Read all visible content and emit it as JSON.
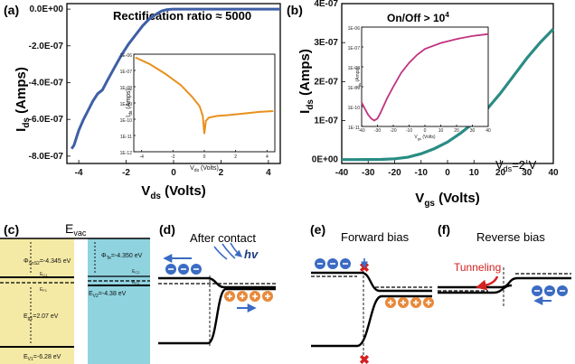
{
  "panels": {
    "a": "(a)",
    "b": "(b)",
    "c": "(c)",
    "d": "(d)",
    "e": "(e)",
    "f": "(f)"
  },
  "panel_a": {
    "annotation": "Rectification ratio ≈ 5000",
    "ylabel_main": "I",
    "ylabel_sub": "ds",
    "ylabel_unit": " (Amps)",
    "xlabel_main": "V",
    "xlabel_sub": "ds",
    "xlabel_unit": " (Volts)",
    "yticks": [
      "0.0E+00",
      "-2.0E-07",
      "-4.0E-07",
      "-6.0E-07",
      "-8.0E-07"
    ],
    "xticks": [
      "-4",
      "-2",
      "0",
      "2",
      "4"
    ],
    "inset": {
      "ylabel": "I",
      "ylabel_sub": "ds",
      "ylabel_unit": " (Amps)",
      "xlabel": "V",
      "xlabel_sub": "ds",
      "xlabel_unit": " (Volts)",
      "yticks": [
        "1E-06",
        "1E-07",
        "1E-08",
        "1E-09",
        "1E-10",
        "1E-11",
        "1E-12"
      ],
      "xticks": [
        "-4",
        "-2",
        "0",
        "2",
        "4"
      ]
    }
  },
  "panel_b": {
    "annotation": "On/Off > 10",
    "annotation_exp": "4",
    "ylabel_main": "I",
    "ylabel_sub": "ds",
    "ylabel_unit": " (Amps)",
    "xlabel_main": "V",
    "xlabel_sub": "gs",
    "xlabel_unit": " (Volts)",
    "yticks": [
      "4E-07",
      "3E-07",
      "2E-07",
      "1E-07",
      "0E+00"
    ],
    "xticks": [
      "-40",
      "-30",
      "-20",
      "-10",
      "0",
      "10",
      "20",
      "30",
      "40"
    ],
    "vds_label": "V",
    "vds_sub": "ds",
    "vds_value": "=2 V",
    "inset": {
      "ylabel": "I",
      "ylabel_sub": "ds",
      "ylabel_unit": " (Amps)",
      "xlabel": "V",
      "xlabel_sub": "gs",
      "xlabel_unit": " (Volts)",
      "yticks": [
        "1E-06",
        "1E-07",
        "1E-08",
        "1E-09",
        "1E-10",
        "1E-11"
      ],
      "xticks": [
        "-40",
        "-30",
        "-20",
        "-10",
        "0",
        "10",
        "20",
        "30",
        "40"
      ]
    }
  },
  "panel_c": {
    "evac": "E",
    "evac_sub": "vac",
    "phi1": "Φ",
    "phi1_sub": "SnS2",
    "phi1_val": "=-4.345 eV",
    "phi2": "Φ",
    "phi2_sub": "Te",
    "phi2_val": "=-4.350 eV",
    "ec1": "E",
    "ec1_sub": "C1",
    "ef1": "E",
    "ef1_sub": "F1",
    "ec2": "E",
    "ec2_sub": "C2",
    "ef2": "E",
    "ef2_sub": "F2",
    "ev2": "E",
    "ev2_sub": "V2",
    "ev2_val": "=-4.38 eV",
    "eg": "E",
    "eg_sub": "g1",
    "eg_val": "=2.07 eV",
    "ev1": "E",
    "ev1_sub": "V1",
    "ev1_val": "=-6.28 eV"
  },
  "panel_d": {
    "title": "After contact",
    "hv": "hv"
  },
  "panel_e": {
    "title": "Forward bias"
  },
  "panel_f": {
    "title": "Reverse bias",
    "tunneling": "Tunneling"
  },
  "colors": {
    "curve_a": "#3e5fa5",
    "inset_a": "#e8901c",
    "curve_b": "#2a8c84",
    "inset_b": "#c0337f",
    "sns2": "#f5eaa5",
    "te": "#8fd3df",
    "electron": "#3b6bc4",
    "hole": "#e8893a",
    "red": "#d42020"
  },
  "chart_data": [
    {
      "type": "line",
      "panel": "a",
      "xlabel": "Vds (Volts)",
      "ylabel": "Ids (Amps)",
      "xlim": [
        -4.5,
        4.5
      ],
      "ylim": [
        -8.4e-07,
        3e-08
      ],
      "series": [
        {
          "x": [
            -4.3,
            -4.2,
            -4.1,
            -4.0,
            -3.8,
            -3.6,
            -3.4,
            -3.2,
            -3.0,
            -2.8,
            -2.5,
            -2.2,
            -1.9,
            -1.6,
            -1.3,
            -1.0,
            -0.7,
            -0.5,
            -0.3,
            -0.1,
            0.0,
            1.0,
            2.0,
            3.0,
            4.0,
            4.5
          ],
          "y": [
            -7.6e-07,
            -7.4e-07,
            -7e-07,
            -6.6e-07,
            -6e-07,
            -5.5e-07,
            -5e-07,
            -4.6e-07,
            -4.4e-07,
            -3.9e-07,
            -3.2e-07,
            -2.5e-07,
            -1.9e-07,
            -1.4e-07,
            -9e-08,
            -5e-08,
            -2.5e-08,
            -1e-08,
            -3e-09,
            -5e-10,
            0.0,
            0.0,
            0.0,
            0.0,
            0.0,
            0.0
          ]
        }
      ]
    },
    {
      "type": "line",
      "panel": "a-inset",
      "xlabel": "Vds (Volts)",
      "ylabel": "Ids (Amps)",
      "xlim": [
        -4.5,
        4.5
      ],
      "ylim": [
        -12,
        -6
      ],
      "yscale": "log",
      "series": [
        {
          "x": [
            -4.4,
            -3.5,
            -2.5,
            -1.5,
            -0.8,
            -0.3,
            -0.1,
            0.0,
            0.1,
            0.3,
            0.8,
            1.5,
            2.5,
            3.5,
            4.4
          ],
          "y": [
            -6.2,
            -6.6,
            -7.2,
            -7.9,
            -8.6,
            -9.2,
            -9.8,
            -10.9,
            -10.1,
            -9.9,
            -9.8,
            -9.75,
            -9.65,
            -9.55,
            -9.5
          ]
        }
      ]
    },
    {
      "type": "line",
      "panel": "b",
      "xlabel": "Vgs (Volts)",
      "ylabel": "Ids (Amps)",
      "xlim": [
        -40,
        40
      ],
      "ylim": [
        -1e-08,
        4e-07
      ],
      "series": [
        {
          "x": [
            -40,
            -35,
            -30,
            -25,
            -20,
            -15,
            -10,
            -5,
            0,
            5,
            10,
            15,
            20,
            25,
            30,
            35,
            40
          ],
          "y": [
            0.0,
            0.0,
            1e-10,
            5e-10,
            2e-09,
            6e-09,
            1.5e-08,
            2.8e-08,
            4.5e-08,
            6.8e-08,
            9.5e-08,
            1.3e-07,
            1.7e-07,
            2.15e-07,
            2.6e-07,
            3e-07,
            3.35e-07
          ]
        }
      ]
    },
    {
      "type": "line",
      "panel": "b-inset",
      "xlabel": "Vgs (Volts)",
      "ylabel": "Ids (Amps)",
      "xlim": [
        -40,
        40
      ],
      "ylim": [
        -11,
        -6
      ],
      "yscale": "log",
      "series": [
        {
          "x": [
            -40,
            -38,
            -36,
            -34,
            -32,
            -30,
            -28,
            -24,
            -20,
            -15,
            -10,
            -5,
            0,
            10,
            20,
            30,
            40
          ],
          "y": [
            -9.8,
            -10.1,
            -10.4,
            -10.6,
            -10.7,
            -10.6,
            -10.3,
            -9.6,
            -9.0,
            -8.3,
            -7.8,
            -7.4,
            -7.1,
            -6.8,
            -6.6,
            -6.45,
            -6.35
          ]
        }
      ]
    }
  ]
}
